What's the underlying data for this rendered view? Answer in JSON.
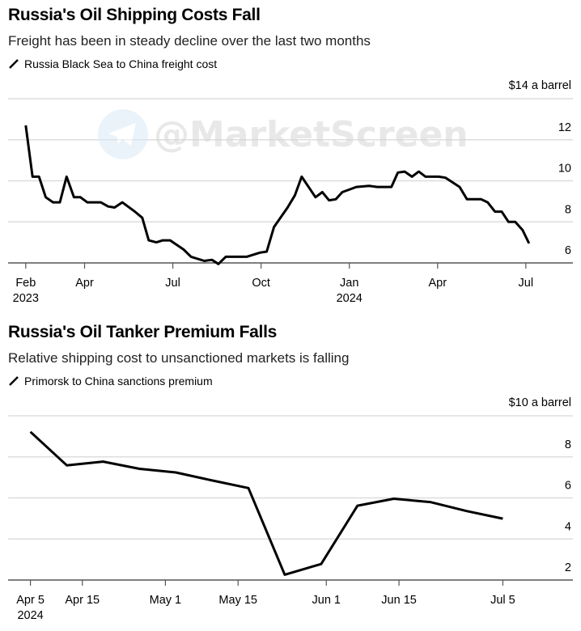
{
  "watermark": "@MarketScreen",
  "chart_data": [
    {
      "type": "line",
      "title": "Russia's Oil Shipping Costs Fall",
      "subtitle": "Freight has been in steady decline over the last two months",
      "legend": "Russia Black Sea to China freight cost",
      "unit_label": "$14 a barrel",
      "x_unit": "months since Feb 2023",
      "ylim": [
        6,
        14
      ],
      "yticks": [
        "12",
        "10",
        "8",
        "6"
      ],
      "ytick_values": [
        12,
        10,
        8,
        6
      ],
      "xticks": [
        {
          "label": "Feb",
          "sub": "2023",
          "x": 0
        },
        {
          "label": "Apr",
          "sub": "",
          "x": 2
        },
        {
          "label": "Jul",
          "sub": "",
          "x": 5
        },
        {
          "label": "Oct",
          "sub": "",
          "x": 8
        },
        {
          "label": "Jan",
          "sub": "2024",
          "x": 11
        },
        {
          "label": "Apr",
          "sub": "",
          "x": 14
        },
        {
          "label": "Jul",
          "sub": "",
          "x": 17
        }
      ],
      "xlim": [
        -0.6,
        18.6
      ],
      "series": [
        {
          "name": "Russia Black Sea to China freight cost",
          "x": [
            0,
            0.23,
            0.45,
            0.68,
            0.93,
            1.16,
            1.39,
            1.64,
            1.86,
            2.09,
            2.55,
            2.8,
            3.02,
            3.28,
            3.71,
            3.96,
            4.18,
            4.44,
            4.66,
            4.91,
            5.37,
            5.62,
            6.07,
            6.33,
            6.55,
            6.8,
            7.51,
            7.96,
            8.19,
            8.44,
            8.9,
            9.15,
            9.38,
            9.85,
            10.08,
            10.31,
            10.54,
            10.76,
            11.24,
            11.67,
            11.95,
            12.43,
            12.65,
            12.88,
            13.13,
            13.36,
            13.59,
            14.04,
            14.27,
            14.75,
            15.0,
            15.48,
            15.7,
            15.95,
            16.18,
            16.41,
            16.64,
            16.89,
            17.11
          ],
          "y": [
            12.7,
            10.2,
            10.2,
            9.2,
            8.95,
            8.95,
            10.2,
            9.2,
            9.2,
            8.95,
            8.95,
            8.75,
            8.7,
            8.95,
            8.5,
            8.2,
            7.1,
            7.0,
            7.1,
            7.1,
            6.65,
            6.3,
            6.1,
            6.15,
            5.95,
            6.3,
            6.3,
            6.5,
            6.55,
            7.75,
            8.7,
            9.3,
            10.2,
            9.2,
            9.45,
            9.05,
            9.1,
            9.45,
            9.7,
            9.75,
            9.7,
            9.7,
            10.4,
            10.45,
            10.2,
            10.45,
            10.2,
            10.2,
            10.15,
            9.7,
            9.1,
            9.1,
            8.95,
            8.5,
            8.5,
            8.0,
            8.0,
            7.6,
            6.95
          ]
        }
      ]
    },
    {
      "type": "line",
      "title": "Russia's Oil Tanker Premium Falls",
      "subtitle": "Relative shipping cost to unsanctioned markets is falling",
      "legend": "Primorsk to China sanctions premium",
      "unit_label": "$10 a barrel",
      "x_unit": "days since Apr 5 2024",
      "ylim": [
        2,
        10
      ],
      "yticks": [
        "8",
        "6",
        "4",
        "2"
      ],
      "ytick_values": [
        8,
        6,
        4,
        2
      ],
      "xticks": [
        {
          "label": "Apr 5",
          "sub": "2024",
          "x": 0
        },
        {
          "label": "Apr 15",
          "sub": "",
          "x": 10
        },
        {
          "label": "May 1",
          "sub": "",
          "x": 26
        },
        {
          "label": "May 15",
          "sub": "",
          "x": 40
        },
        {
          "label": "Jun 1",
          "sub": "",
          "x": 57
        },
        {
          "label": "Jun 15",
          "sub": "",
          "x": 71
        },
        {
          "label": "Jul 5",
          "sub": "",
          "x": 91
        }
      ],
      "xlim": [
        -4.3,
        104.5
      ],
      "series": [
        {
          "name": "Primorsk to China sanctions premium",
          "x": [
            0,
            7,
            14,
            21,
            28,
            35,
            42,
            49,
            56,
            63,
            70,
            77,
            84,
            91
          ],
          "y": [
            9.22,
            7.59,
            7.77,
            7.42,
            7.24,
            6.85,
            6.48,
            2.26,
            2.78,
            5.62,
            5.96,
            5.8,
            5.36,
            4.99
          ]
        }
      ]
    }
  ]
}
